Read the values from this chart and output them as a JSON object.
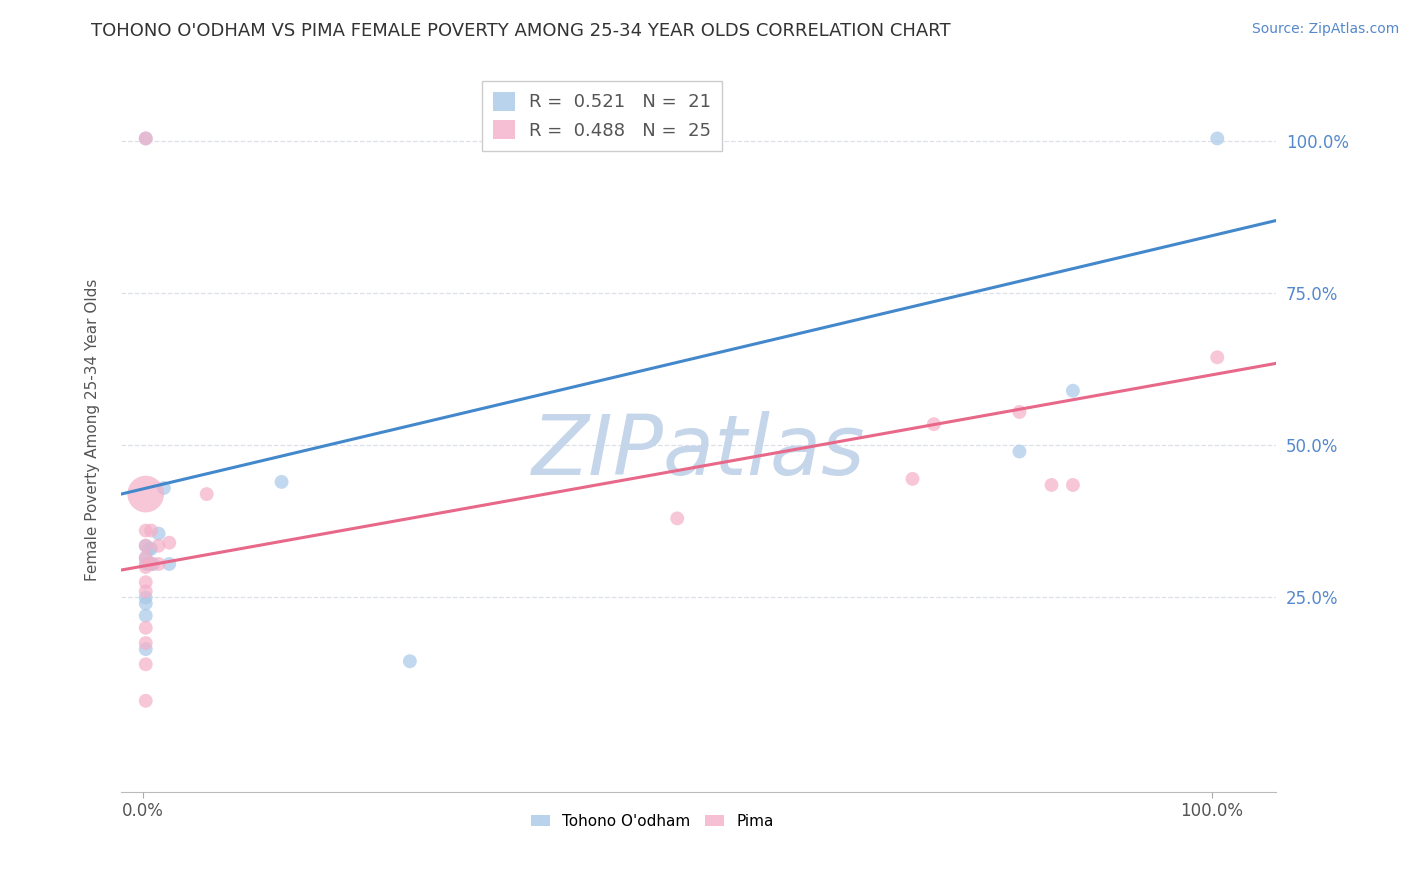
{
  "title": "TOHONO O'ODHAM VS PIMA FEMALE POVERTY AMONG 25-34 YEAR OLDS CORRELATION CHART",
  "source": "Source: ZipAtlas.com",
  "ylabel": "Female Poverty Among 25-34 Year Olds",
  "watermark": "ZIPatlas",
  "blue_label": "Tohono O'odham",
  "pink_label": "Pima",
  "blue_R": 0.521,
  "blue_N": 21,
  "pink_R": 0.488,
  "pink_N": 25,
  "blue_color": "#a8c8e8",
  "pink_color": "#f4b0c8",
  "blue_line_color": "#4488cc",
  "pink_line_color": "#e8688a",
  "blue_points": [
    [
      0.003,
      0.335
    ],
    [
      0.003,
      0.315
    ],
    [
      0.003,
      0.305
    ],
    [
      0.006,
      0.33
    ],
    [
      0.006,
      0.305
    ],
    [
      0.008,
      0.33
    ],
    [
      0.008,
      0.305
    ],
    [
      0.01,
      0.305
    ],
    [
      0.015,
      0.355
    ],
    [
      0.02,
      0.43
    ],
    [
      0.025,
      0.305
    ],
    [
      0.003,
      0.25
    ],
    [
      0.003,
      0.24
    ],
    [
      0.003,
      0.22
    ],
    [
      0.003,
      1.005
    ],
    [
      0.13,
      0.44
    ],
    [
      0.003,
      0.165
    ],
    [
      0.25,
      0.145
    ],
    [
      0.82,
      0.49
    ],
    [
      0.87,
      0.59
    ],
    [
      1.005,
      1.005
    ]
  ],
  "pink_points": [
    [
      0.003,
      0.42
    ],
    [
      0.003,
      0.36
    ],
    [
      0.003,
      0.335
    ],
    [
      0.003,
      0.315
    ],
    [
      0.003,
      0.3
    ],
    [
      0.003,
      0.275
    ],
    [
      0.003,
      0.26
    ],
    [
      0.003,
      0.2
    ],
    [
      0.003,
      0.175
    ],
    [
      0.003,
      0.14
    ],
    [
      0.003,
      0.08
    ],
    [
      0.003,
      1.005
    ],
    [
      0.008,
      0.36
    ],
    [
      0.008,
      0.305
    ],
    [
      0.015,
      0.335
    ],
    [
      0.015,
      0.305
    ],
    [
      0.025,
      0.34
    ],
    [
      0.06,
      0.42
    ],
    [
      0.5,
      0.38
    ],
    [
      0.72,
      0.445
    ],
    [
      0.74,
      0.535
    ],
    [
      0.82,
      0.555
    ],
    [
      0.85,
      0.435
    ],
    [
      0.87,
      0.435
    ],
    [
      1.005,
      0.645
    ]
  ],
  "blue_sizes": [
    100,
    100,
    100,
    100,
    100,
    100,
    100,
    100,
    100,
    100,
    100,
    100,
    100,
    100,
    100,
    100,
    100,
    100,
    100,
    100,
    100
  ],
  "pink_sizes": [
    100,
    100,
    100,
    100,
    100,
    100,
    100,
    100,
    100,
    100,
    100,
    100,
    100,
    100,
    100,
    100,
    100,
    100,
    100,
    100,
    100,
    100,
    100,
    100,
    100
  ],
  "big_blue_idx": [],
  "big_pink_idx": [
    0
  ],
  "big_size": 700,
  "xlim": [
    -0.02,
    1.06
  ],
  "ylim": [
    -0.07,
    1.12
  ],
  "xticks": [
    0.0,
    1.0
  ],
  "yticks": [
    0.25,
    0.5,
    0.75,
    1.0
  ],
  "xticklabels": [
    "0.0%",
    "100.0%"
  ],
  "yticklabels_right": [
    "25.0%",
    "50.0%",
    "75.0%",
    "100.0%"
  ],
  "background_color": "#ffffff",
  "grid_color": "#dde0e8",
  "marker_size": 100,
  "line_width": 2.2,
  "title_fontsize": 13,
  "label_fontsize": 11,
  "tick_fontsize": 12,
  "legend_fontsize": 13,
  "watermark_fontsize": 60,
  "watermark_color": "#c5d5ea",
  "source_fontsize": 10,
  "source_color": "#5588cc"
}
